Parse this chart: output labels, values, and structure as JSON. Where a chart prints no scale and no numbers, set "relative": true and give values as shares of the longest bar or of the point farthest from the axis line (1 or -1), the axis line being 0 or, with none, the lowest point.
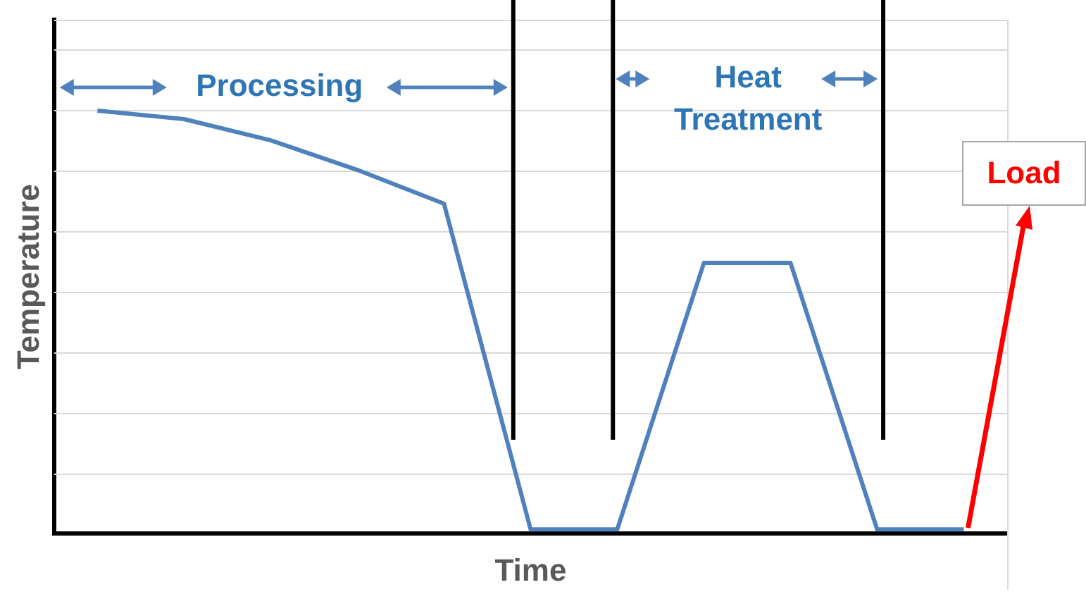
{
  "chart_data": {
    "type": "line",
    "xlabel": "Time",
    "ylabel": "Temperature",
    "relative": true,
    "grid": "y",
    "legend": false,
    "marker": "none",
    "categories": [
      null,
      null,
      null,
      null,
      null,
      null,
      null,
      null,
      null,
      null,
      null
    ],
    "series": [
      {
        "color": "#4f81bd",
        "values": [
          1,
          0.98,
          0.93,
          0.86,
          0.78,
          0.01,
          0.01,
          0.64,
          0.64,
          0.01,
          0.01
        ]
      }
    ],
    "annotations": [
      "Processing",
      "Heat Treatment",
      "Load"
    ]
  }
}
